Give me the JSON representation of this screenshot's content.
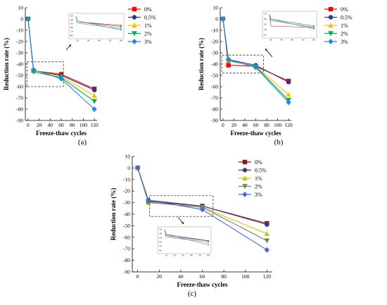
{
  "chart_data": [
    {
      "type": "line",
      "panel_label": "(a)",
      "xlabel": "Freeze-thaw cycles",
      "ylabel": "Reduction rate (%)",
      "xlim": [
        -5,
        125
      ],
      "ylim": [
        -90,
        10
      ],
      "xticks": [
        0,
        20,
        40,
        60,
        80,
        100,
        120
      ],
      "yticks": [
        10,
        0,
        -10,
        -20,
        -30,
        -40,
        -50,
        -60,
        -70,
        -80,
        -90
      ],
      "x": [
        0,
        10,
        60,
        120
      ],
      "series": [
        {
          "name": "0%",
          "color": "#ff0000",
          "marker": "square",
          "values": [
            0,
            -46,
            -49,
            -62
          ]
        },
        {
          "name": "0.5%",
          "color": "#2b3a8a",
          "marker": "circle",
          "values": [
            0,
            -46,
            -50,
            -63
          ]
        },
        {
          "name": "1%",
          "color": "#ffc000",
          "marker": "triangle",
          "values": [
            0,
            -46,
            -51,
            -68
          ]
        },
        {
          "name": "2%",
          "color": "#00b050",
          "marker": "tri-down",
          "values": [
            0,
            -47,
            -52,
            -73
          ]
        },
        {
          "name": "3%",
          "color": "#1e88e5",
          "marker": "diamond",
          "values": [
            0,
            -45,
            -53,
            -80
          ]
        }
      ],
      "legend_placement": "top-right",
      "zoom_box": {
        "x": [
          -2,
          64
        ],
        "y": [
          -60,
          -38
        ]
      },
      "inset_xticks": [
        "20",
        "30",
        "40",
        "50",
        "60"
      ],
      "inset_yticks": [
        "-30",
        "-40",
        "-50",
        "-60",
        "-70",
        "-80"
      ]
    },
    {
      "type": "line",
      "panel_label": "(b)",
      "xlabel": "Freeze-thaw cycles",
      "ylabel": "Reduction rate (%)",
      "xlim": [
        -5,
        125
      ],
      "ylim": [
        -90,
        10
      ],
      "xticks": [
        0,
        20,
        40,
        60,
        80,
        100,
        120
      ],
      "yticks": [
        10,
        0,
        -10,
        -20,
        -30,
        -40,
        -50,
        -60,
        -70,
        -80,
        -90
      ],
      "x": [
        0,
        10,
        60,
        120
      ],
      "series": [
        {
          "name": "0%",
          "color": "#ff0000",
          "marker": "square",
          "values": [
            0,
            -41,
            -42,
            -55
          ]
        },
        {
          "name": "0.5%",
          "color": "#2b3a8a",
          "marker": "circle",
          "values": [
            0,
            -36,
            -41,
            -56
          ]
        },
        {
          "name": "1%",
          "color": "#ffc000",
          "marker": "triangle",
          "values": [
            0,
            -37,
            -42,
            -67
          ]
        },
        {
          "name": "2%",
          "color": "#00b050",
          "marker": "tri-down",
          "values": [
            0,
            -37,
            -42,
            -72
          ]
        },
        {
          "name": "3%",
          "color": "#1e88e5",
          "marker": "diamond",
          "values": [
            0,
            -36,
            -43,
            -74
          ]
        }
      ],
      "legend_placement": "top-right",
      "zoom_box": {
        "x": [
          -2,
          74
        ],
        "y": [
          -48,
          -32
        ]
      },
      "inset_xticks": [
        "20",
        "30",
        "40",
        "50",
        "60"
      ],
      "inset_yticks": [
        "-10",
        "-20",
        "-30",
        "-40",
        "-50"
      ]
    },
    {
      "type": "line",
      "panel_label": "(c)",
      "xlabel": "Freeze-thaw cycles",
      "ylabel": "Reduction rate (%)",
      "xlim": [
        -5,
        125
      ],
      "ylim": [
        -90,
        10
      ],
      "xticks": [
        0,
        20,
        40,
        60,
        80,
        100,
        120
      ],
      "yticks": [
        10,
        0,
        -10,
        -20,
        -30,
        -40,
        -50,
        -60,
        -70,
        -80,
        -90
      ],
      "x": [
        0,
        10,
        60,
        120
      ],
      "series": [
        {
          "name": "0%",
          "color": "#8b1a1a",
          "marker": "square",
          "values": [
            0,
            -29,
            -33,
            -48
          ]
        },
        {
          "name": "0.5%",
          "color": "#3a3a8a",
          "marker": "circle",
          "values": [
            0,
            -28,
            -33,
            -49
          ]
        },
        {
          "name": "1%",
          "color": "#c8c800",
          "marker": "triangle",
          "values": [
            0,
            -30,
            -34,
            -57
          ]
        },
        {
          "name": "2%",
          "color": "#5f8f5f",
          "marker": "tri-down",
          "values": [
            0,
            -30,
            -34,
            -63
          ]
        },
        {
          "name": "3%",
          "color": "#4169e1",
          "marker": "diamond",
          "values": [
            0,
            -28,
            -36,
            -71
          ]
        }
      ],
      "legend_placement": "top-right",
      "zoom_box": {
        "x": [
          11,
          70
        ],
        "y": [
          -42,
          -24
        ]
      },
      "inset_xticks": [
        "10",
        "20",
        "30",
        "40",
        "50",
        "60"
      ],
      "inset_yticks": [
        "-30",
        "-40",
        "-50",
        "-60",
        "-70",
        "-80"
      ]
    }
  ]
}
